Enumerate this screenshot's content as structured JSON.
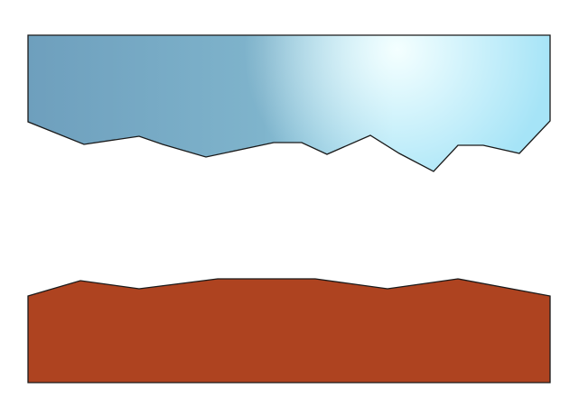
{
  "colors": {
    "background": "#ffffff",
    "top_shape_dark": "#6e9fbd",
    "top_shape_mid": "#7fb4cc",
    "top_shape_highlight": "#f4ffff",
    "top_shape_light": "#a6e4f7",
    "bottom_shape_fill": "#ae4320",
    "outline": "#1a1a1a"
  }
}
